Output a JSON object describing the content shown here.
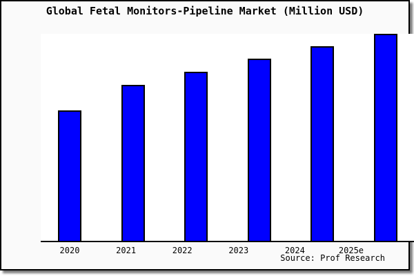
{
  "window": {
    "background_color": "#fafafa",
    "frame_border_color": "#000000",
    "plot_background_color": "#ffffff"
  },
  "chart_data": {
    "type": "bar",
    "title": "Global Fetal Monitors-Pipeline Market (Million USD)",
    "categories": [
      "2020",
      "2021",
      "2022",
      "2023",
      "2024",
      "2025e"
    ],
    "values": [
      63,
      75.3,
      81.7,
      88,
      94,
      100
    ],
    "ylim": [
      0,
      100
    ],
    "xlabel": "",
    "ylabel": "",
    "grid": false,
    "legend": false,
    "y_axis_ticks_visible": false,
    "bar_color": "#0000ff",
    "bar_border_color": "#000000"
  },
  "footer": {
    "source_label": "Source: Prof Research"
  }
}
